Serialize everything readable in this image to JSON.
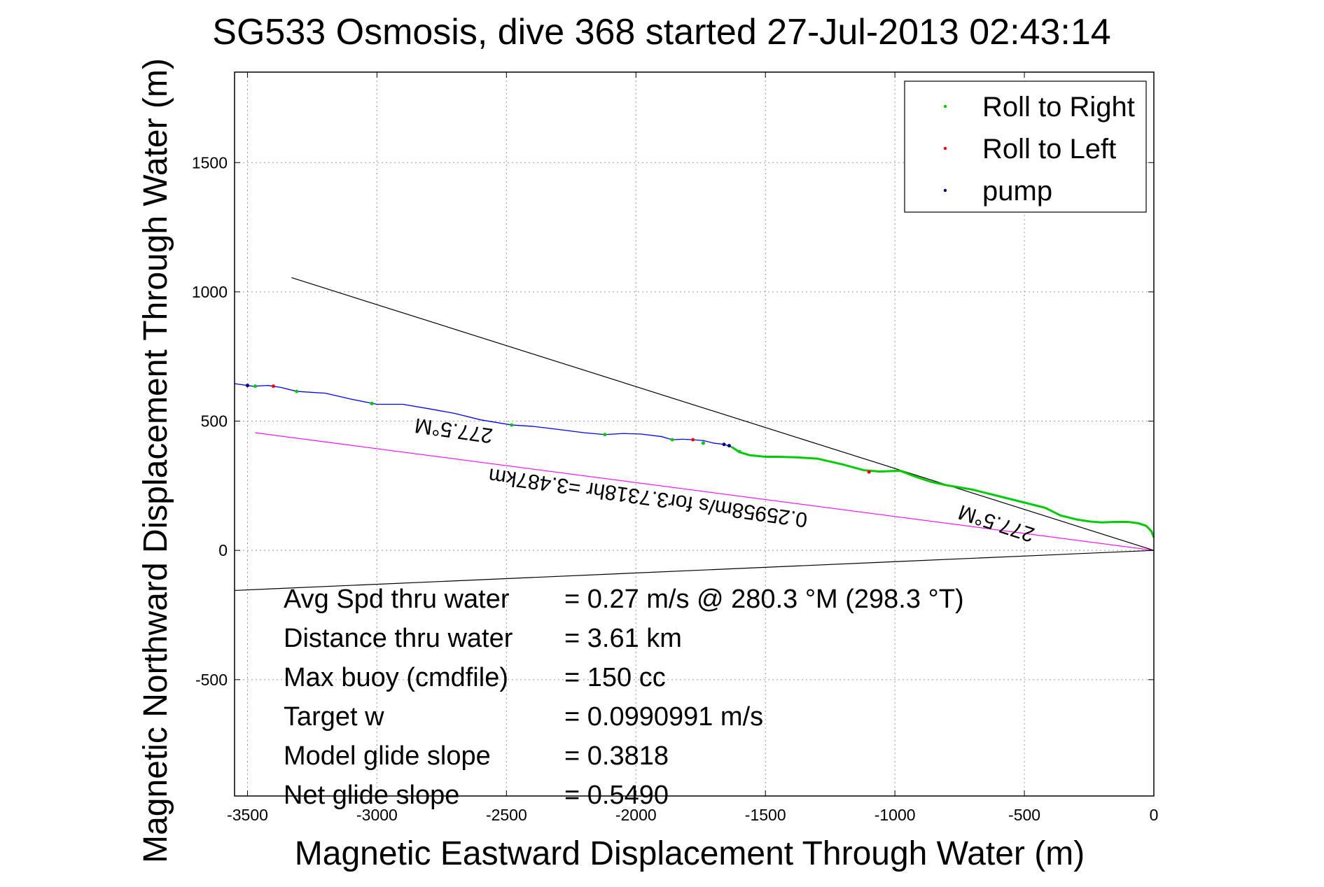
{
  "chart_data": {
    "type": "line",
    "title": "SG533 Osmosis, dive 368 started 27-Jul-2013 02:43:14",
    "xlabel": "Magnetic Eastward Displacement Through Water (m)",
    "ylabel": "Magnetic Northward Displacement Through Water (m)",
    "xlim": [
      -3550,
      0
    ],
    "ylim": [
      -950,
      1850
    ],
    "xticks": [
      -3500,
      -3000,
      -2500,
      -2000,
      -1500,
      -1000,
      -500,
      0
    ],
    "yticks": [
      -500,
      0,
      500,
      1000,
      1500
    ],
    "grid": true,
    "legend": {
      "placement": "top-right",
      "entries": [
        {
          "label": "Roll to Right",
          "color": "#00cc00"
        },
        {
          "label": "Roll to Left",
          "color": "#ff0000"
        },
        {
          "label": "pump",
          "color": "#000080"
        }
      ]
    },
    "series": [
      {
        "color": "#0000ff",
        "x": [
          -3550,
          -3480,
          -3420,
          -3370,
          -3310,
          -3200,
          -3100,
          -3000,
          -2900,
          -2800,
          -2700,
          -2600,
          -2480,
          -2400,
          -2300,
          -2200,
          -2120,
          -2050,
          -1980,
          -1900,
          -1860,
          -1820,
          -1780,
          -1740,
          -1700,
          -1660,
          -1630
        ],
        "y": [
          645,
          635,
          638,
          630,
          615,
          608,
          585,
          565,
          565,
          548,
          530,
          505,
          485,
          480,
          468,
          455,
          448,
          452,
          450,
          440,
          428,
          430,
          428,
          425,
          415,
          410,
          400
        ]
      },
      {
        "color": "#00cc00",
        "x": [
          -1630,
          -1600,
          -1560,
          -1500,
          -1450,
          -1380,
          -1300,
          -1200,
          -1120,
          -1060,
          -980,
          -920,
          -860,
          -800,
          -700,
          -600,
          -500,
          -420,
          -360,
          -300,
          -250,
          -200,
          -150,
          -100,
          -60,
          -30,
          -10,
          0
        ],
        "y": [
          400,
          380,
          368,
          362,
          362,
          360,
          355,
          332,
          310,
          305,
          308,
          285,
          265,
          252,
          235,
          210,
          185,
          165,
          135,
          120,
          112,
          108,
          110,
          110,
          105,
          95,
          75,
          50
        ]
      }
    ],
    "roll_to_right_points": [
      [
        -3470,
        635
      ],
      [
        -3310,
        615
      ],
      [
        -3020,
        568
      ],
      [
        -2480,
        485
      ],
      [
        -2120,
        448
      ],
      [
        -1860,
        428
      ],
      [
        -1740,
        415
      ],
      [
        -1600,
        382
      ]
    ],
    "roll_to_left_points": [
      [
        -3400,
        635
      ],
      [
        -1780,
        428
      ],
      [
        -1100,
        303
      ]
    ],
    "pump_points": [
      [
        -3500,
        638
      ],
      [
        -1660,
        410
      ],
      [
        -1640,
        405
      ]
    ],
    "reference_lines": [
      {
        "color": "#000000",
        "x": [
          -3330,
          0
        ],
        "y": [
          1055,
          0
        ]
      },
      {
        "color": "#000000",
        "x": [
          -3550,
          0
        ],
        "y": [
          -155,
          0
        ]
      },
      {
        "color": "#ff00ff",
        "x": [
          -3470,
          0
        ],
        "y": [
          455,
          0
        ]
      }
    ],
    "annotations": [
      {
        "text": "277.5°M",
        "x": -2700,
        "y": 490,
        "rotation": 188
      },
      {
        "text": "0.25958m/s for3.7318hr =3.487km",
        "x": -1950,
        "y": 230,
        "rotation": 188
      },
      {
        "text": "277.5°M",
        "x": -600,
        "y": 130,
        "rotation": 198
      }
    ],
    "stats": [
      {
        "label": "Avg Spd thru water",
        "value": "=  0.27 m/s @ 280.3 °M (298.3 °T)"
      },
      {
        "label": "Distance thru water",
        "value": "=  3.61 km"
      },
      {
        "label": "Max buoy (cmdfile)",
        "value": "= 150 cc"
      },
      {
        "label": "Target w",
        "value": "= 0.0990991 m/s"
      },
      {
        "label": "Model glide slope",
        "value": "= 0.3818"
      },
      {
        "label": "Net glide slope",
        "value": "= 0.5490"
      }
    ]
  }
}
